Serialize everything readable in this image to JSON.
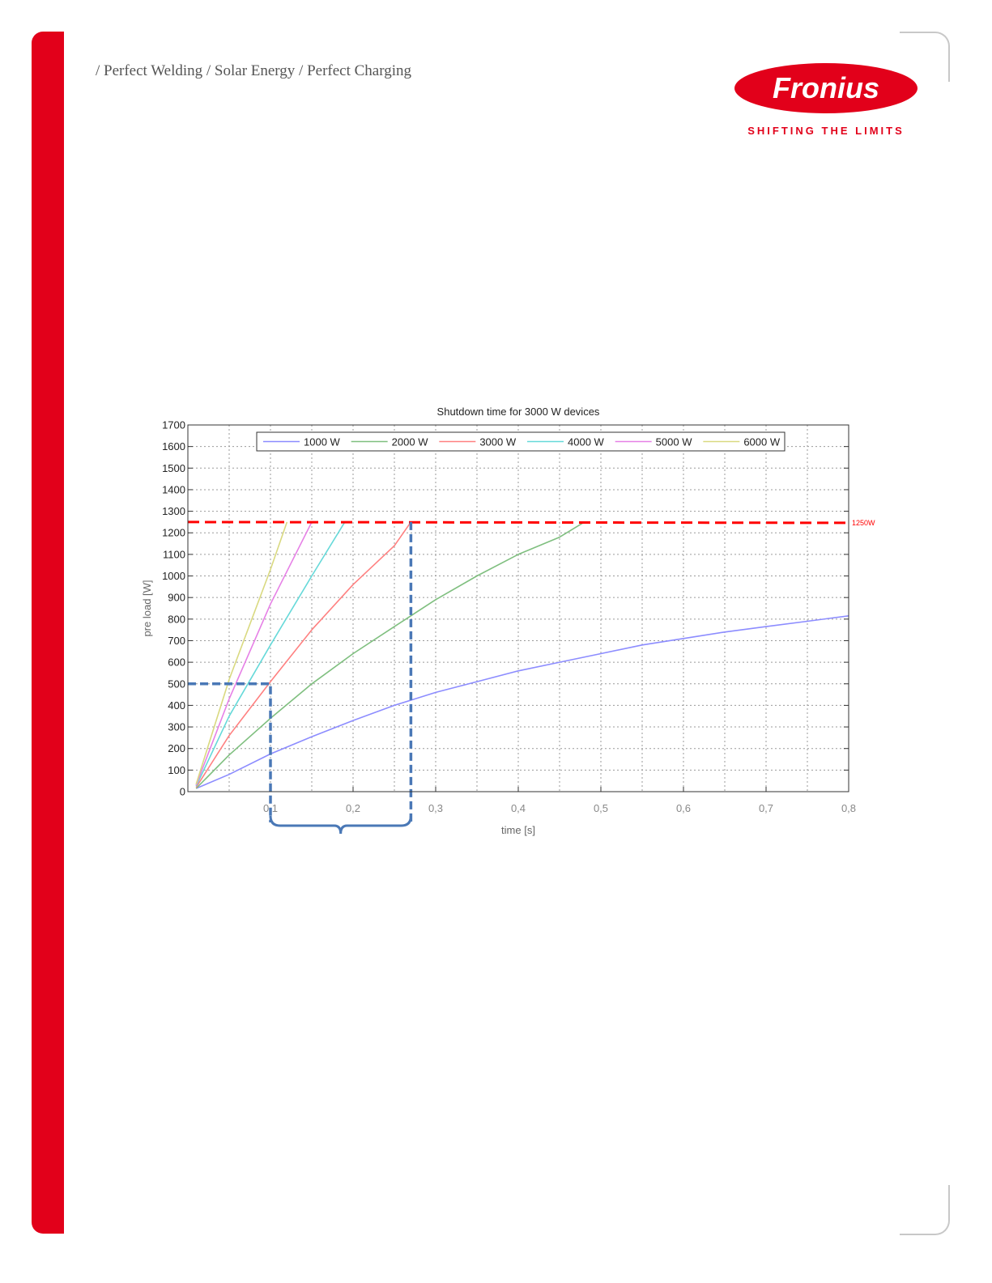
{
  "header": {
    "tagline": "/ Perfect Welding / Solar Energy / Perfect Charging",
    "brand_name": "Fronius",
    "brand_slogan": "SHIFTING THE LIMITS",
    "brand_color": "#e2001a"
  },
  "chart_data": {
    "type": "line",
    "title": "Shutdown time for 3000 W devices",
    "xlabel": "time [s]",
    "ylabel": "pre load [W]",
    "xlim": [
      0.0,
      0.8
    ],
    "ylim": [
      0,
      1700
    ],
    "x_ticks": [
      0.1,
      0.2,
      0.3,
      0.4,
      0.5,
      0.6,
      0.7,
      0.8
    ],
    "x_tick_labels": [
      "0,1",
      "0,2",
      "0,3",
      "0,4",
      "0,5",
      "0,6",
      "0,7",
      "0,8"
    ],
    "y_ticks": [
      0,
      100,
      200,
      300,
      400,
      500,
      600,
      700,
      800,
      900,
      1000,
      1100,
      1200,
      1300,
      1400,
      1500,
      1600,
      1700
    ],
    "grid": true,
    "legend_position": "top",
    "series": [
      {
        "name": "1000 W",
        "color": "#8c8cff",
        "points": [
          [
            0.01,
            15
          ],
          [
            0.05,
            80
          ],
          [
            0.1,
            175
          ],
          [
            0.15,
            255
          ],
          [
            0.2,
            330
          ],
          [
            0.25,
            400
          ],
          [
            0.3,
            460
          ],
          [
            0.35,
            510
          ],
          [
            0.4,
            560
          ],
          [
            0.45,
            600
          ],
          [
            0.5,
            640
          ],
          [
            0.55,
            680
          ],
          [
            0.6,
            710
          ],
          [
            0.65,
            740
          ],
          [
            0.7,
            765
          ],
          [
            0.75,
            790
          ],
          [
            0.8,
            815
          ]
        ]
      },
      {
        "name": "2000 W",
        "color": "#7fbf7f",
        "points": [
          [
            0.01,
            15
          ],
          [
            0.05,
            170
          ],
          [
            0.1,
            340
          ],
          [
            0.15,
            500
          ],
          [
            0.2,
            640
          ],
          [
            0.25,
            765
          ],
          [
            0.3,
            890
          ],
          [
            0.35,
            1000
          ],
          [
            0.4,
            1100
          ],
          [
            0.45,
            1180
          ],
          [
            0.48,
            1250
          ]
        ]
      },
      {
        "name": "3000 W",
        "color": "#ff8080",
        "points": [
          [
            0.01,
            20
          ],
          [
            0.05,
            260
          ],
          [
            0.1,
            510
          ],
          [
            0.15,
            750
          ],
          [
            0.2,
            960
          ],
          [
            0.25,
            1140
          ],
          [
            0.27,
            1250
          ]
        ]
      },
      {
        "name": "4000 W",
        "color": "#66d9d9",
        "points": [
          [
            0.01,
            25
          ],
          [
            0.05,
            350
          ],
          [
            0.1,
            680
          ],
          [
            0.15,
            1000
          ],
          [
            0.19,
            1250
          ]
        ]
      },
      {
        "name": "5000 W",
        "color": "#e680e6",
        "points": [
          [
            0.01,
            30
          ],
          [
            0.05,
            430
          ],
          [
            0.1,
            870
          ],
          [
            0.15,
            1250
          ]
        ]
      },
      {
        "name": "6000 W",
        "color": "#d9d980",
        "points": [
          [
            0.01,
            35
          ],
          [
            0.05,
            520
          ],
          [
            0.1,
            1030
          ],
          [
            0.12,
            1250
          ]
        ]
      }
    ],
    "threshold": {
      "value": 1250,
      "label": "1250W",
      "color": "#ff0000"
    },
    "annotations": {
      "marker_color": "#4a78b6",
      "preload_marker": {
        "x": 0.1,
        "y": 500
      },
      "shutdown_marker": {
        "x": 0.27,
        "y": 1250
      },
      "brace_x_range": [
        0.1,
        0.27
      ]
    }
  }
}
